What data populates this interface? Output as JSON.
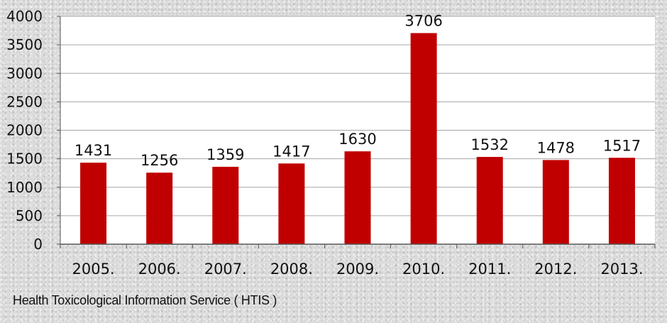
{
  "chart_data": {
    "type": "bar",
    "categories": [
      "2005.",
      "2006.",
      "2007.",
      "2008.",
      "2009.",
      "2010.",
      "2011.",
      "2012.",
      "2013."
    ],
    "values": [
      1431,
      1256,
      1359,
      1417,
      1630,
      3706,
      1532,
      1478,
      1517
    ],
    "data_labels": [
      "1431",
      "1256",
      "1359",
      "1417",
      "1630",
      "3706",
      "1532",
      "1478",
      "1517"
    ],
    "y_ticks": [
      "0",
      "500",
      "1000",
      "1500",
      "2000",
      "2500",
      "3000",
      "3500",
      "4000"
    ],
    "ylim": [
      0,
      4000
    ],
    "grid": true,
    "legend": "none",
    "bar_color": "#c00000",
    "plot_background": "#ffffff"
  },
  "footer": {
    "source": "Health Toxicological Information Service ( HTIS )"
  }
}
